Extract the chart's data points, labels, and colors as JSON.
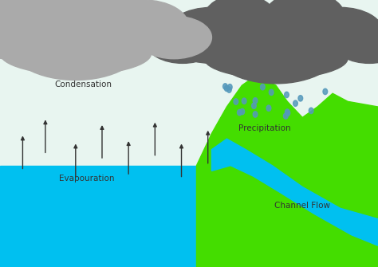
{
  "sky_color": "#e8f5f0",
  "water_color": "#00c0f0",
  "land_color": "#44dd00",
  "river_color": "#00c0f0",
  "cloud_left_color": "#aaaaaa",
  "cloud_right_color": "#606060",
  "sun_color": "#ffee00",
  "condensation_label": "Condensation",
  "evaporation_label": "Evapouration",
  "precipitation_label": "Precipitation",
  "channel_flow_label": "Channel Flow",
  "arrow_color": "#333333",
  "arrows_up": [
    [
      0.06,
      0.36,
      0.06,
      0.5
    ],
    [
      0.12,
      0.42,
      0.12,
      0.56
    ],
    [
      0.2,
      0.33,
      0.2,
      0.47
    ],
    [
      0.27,
      0.4,
      0.27,
      0.54
    ],
    [
      0.34,
      0.34,
      0.34,
      0.48
    ],
    [
      0.41,
      0.41,
      0.41,
      0.55
    ],
    [
      0.48,
      0.33,
      0.48,
      0.47
    ],
    [
      0.55,
      0.38,
      0.55,
      0.52
    ]
  ]
}
